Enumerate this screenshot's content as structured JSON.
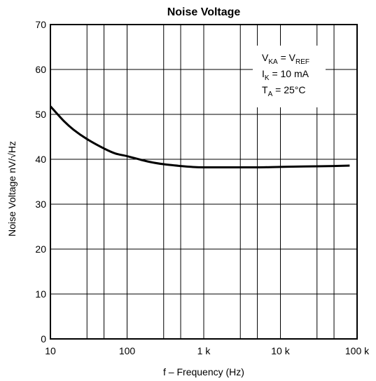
{
  "chart_data": {
    "type": "line",
    "title": "Noise Voltage",
    "xlabel": "f – Frequency (Hz)",
    "ylabel": "Noise Voltage nV/√Hz",
    "x_scale": "log",
    "xlim": [
      10,
      100000
    ],
    "ylim": [
      0,
      70
    ],
    "x_ticks": [
      {
        "value": 10,
        "label": "10"
      },
      {
        "value": 100,
        "label": "100"
      },
      {
        "value": 1000,
        "label": "1 k"
      },
      {
        "value": 10000,
        "label": "10 k"
      },
      {
        "value": 100000,
        "label": "100 k"
      }
    ],
    "y_ticks": [
      {
        "value": 0,
        "label": "0"
      },
      {
        "value": 10,
        "label": "10"
      },
      {
        "value": 20,
        "label": "20"
      },
      {
        "value": 30,
        "label": "30"
      },
      {
        "value": 40,
        "label": "40"
      },
      {
        "value": 50,
        "label": "50"
      },
      {
        "value": 60,
        "label": "60"
      },
      {
        "value": 70,
        "label": "70"
      }
    ],
    "x_grid": [
      10,
      30,
      50,
      100,
      300,
      500,
      1000,
      3000,
      5000,
      10000,
      30000,
      50000,
      100000
    ],
    "y_grid": [
      0,
      10,
      20,
      30,
      40,
      50,
      60,
      70
    ],
    "grid": true,
    "annotation": {
      "line1": {
        "main": "V",
        "sub": "KA",
        "mid": " = V",
        "sub2": "REF"
      },
      "line2": {
        "main": "I",
        "sub": "K",
        "rest": " = 10 mA"
      },
      "line3": {
        "main": "T",
        "sub": "A",
        "rest": " = 25°C"
      }
    },
    "series": [
      {
        "color": "#000000",
        "x": [
          10,
          15,
          20,
          30,
          50,
          70,
          100,
          150,
          200,
          300,
          500,
          700,
          1000,
          2000,
          5000,
          10000,
          20000,
          50000,
          80000
        ],
        "y": [
          51.8,
          48.5,
          46.6,
          44.5,
          42.4,
          41.3,
          40.7,
          39.9,
          39.4,
          38.9,
          38.5,
          38.3,
          38.2,
          38.2,
          38.2,
          38.3,
          38.4,
          38.5,
          38.6
        ]
      }
    ]
  }
}
